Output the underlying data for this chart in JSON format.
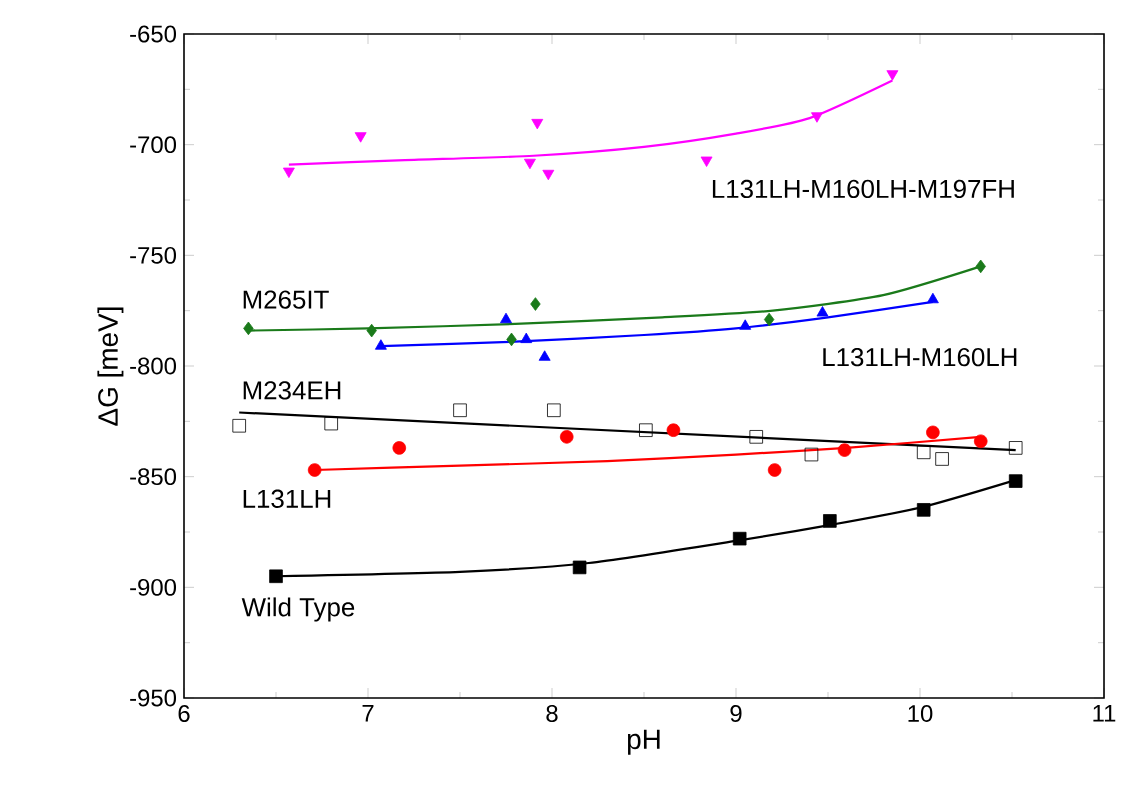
{
  "chart_data": {
    "type": "scatter",
    "xlabel": "pH",
    "ylabel": "ΔG [meV]",
    "xlim": [
      6,
      11
    ],
    "ylim": [
      -950,
      -650
    ],
    "xticks": [
      6,
      7,
      8,
      9,
      10,
      11
    ],
    "yticks": [
      -950,
      -900,
      -850,
      -800,
      -750,
      -700,
      -650
    ],
    "grid": false,
    "series": [
      {
        "name": "L131LH-M160LH-M197FH",
        "color": "#ff00ff",
        "marker": "triangle-down",
        "x": [
          6.57,
          6.96,
          7.92,
          7.88,
          7.98,
          8.84,
          9.44,
          9.85
        ],
        "values": [
          -712,
          -696,
          -690,
          -708,
          -713,
          -707,
          -687,
          -668
        ]
      },
      {
        "name": "M265IT",
        "color": "#1a7a1a",
        "marker": "diamond",
        "x": [
          6.35,
          7.02,
          7.78,
          7.91,
          9.18,
          10.33
        ],
        "values": [
          -783,
          -784,
          -788,
          -772,
          -779,
          -755
        ]
      },
      {
        "name": "L131LH-M160LH",
        "color": "#0000ff",
        "marker": "triangle",
        "x": [
          7.07,
          7.75,
          7.86,
          7.96,
          9.05,
          9.47,
          10.07
        ],
        "values": [
          -791,
          -779,
          -788,
          -796,
          -782,
          -776,
          -770
        ]
      },
      {
        "name": "M234EH",
        "color": "#000000",
        "marker": "square-open",
        "x": [
          6.3,
          6.8,
          7.5,
          8.01,
          8.51,
          9.11,
          9.41,
          10.02,
          10.12,
          10.52
        ],
        "values": [
          -827,
          -826,
          -820,
          -820,
          -829,
          -832,
          -840,
          -839,
          -842,
          -837
        ]
      },
      {
        "name": "L131LH",
        "color": "#ff0000",
        "marker": "circle",
        "x": [
          6.71,
          7.17,
          8.08,
          8.66,
          9.21,
          9.59,
          10.07,
          10.33
        ],
        "values": [
          -847,
          -837,
          -832,
          -829,
          -847,
          -838,
          -830,
          -834
        ]
      },
      {
        "name": "Wild Type",
        "color": "#000000",
        "marker": "square",
        "x": [
          6.5,
          8.15,
          9.02,
          9.51,
          10.02,
          10.52
        ],
        "values": [
          -895,
          -891,
          -878,
          -870,
          -865,
          -852
        ]
      },
      {
        "type": "line",
        "color": "#ff00ff",
        "x": [
          6.57,
          7.2,
          7.9,
          8.5,
          9.0,
          9.4,
          9.85
        ],
        "values": [
          -709,
          -707,
          -705,
          -701,
          -695,
          -688,
          -671
        ]
      },
      {
        "type": "line",
        "color": "#1a7a1a",
        "x": [
          6.35,
          7.0,
          7.8,
          8.6,
          9.2,
          9.8,
          10.33
        ],
        "values": [
          -784,
          -783,
          -781,
          -778,
          -775,
          -768,
          -755
        ]
      },
      {
        "type": "line",
        "color": "#0000ff",
        "x": [
          7.07,
          7.8,
          8.5,
          9.0,
          9.5,
          10.07
        ],
        "values": [
          -791,
          -789,
          -786,
          -783,
          -778,
          -771
        ]
      },
      {
        "type": "line",
        "color": "#000000",
        "x": [
          6.3,
          10.52
        ],
        "values": [
          -821,
          -838
        ]
      },
      {
        "type": "line",
        "color": "#ff0000",
        "x": [
          6.71,
          7.5,
          8.3,
          9.0,
          9.6,
          10.33
        ],
        "values": [
          -847,
          -845,
          -843,
          -840,
          -837,
          -832
        ]
      },
      {
        "type": "line",
        "color": "#000000",
        "x": [
          6.5,
          7.5,
          8.2,
          9.0,
          9.5,
          10.0,
          10.5
        ],
        "values": [
          -895,
          -893,
          -889,
          -879,
          -872,
          -864,
          -852
        ]
      }
    ]
  }
}
